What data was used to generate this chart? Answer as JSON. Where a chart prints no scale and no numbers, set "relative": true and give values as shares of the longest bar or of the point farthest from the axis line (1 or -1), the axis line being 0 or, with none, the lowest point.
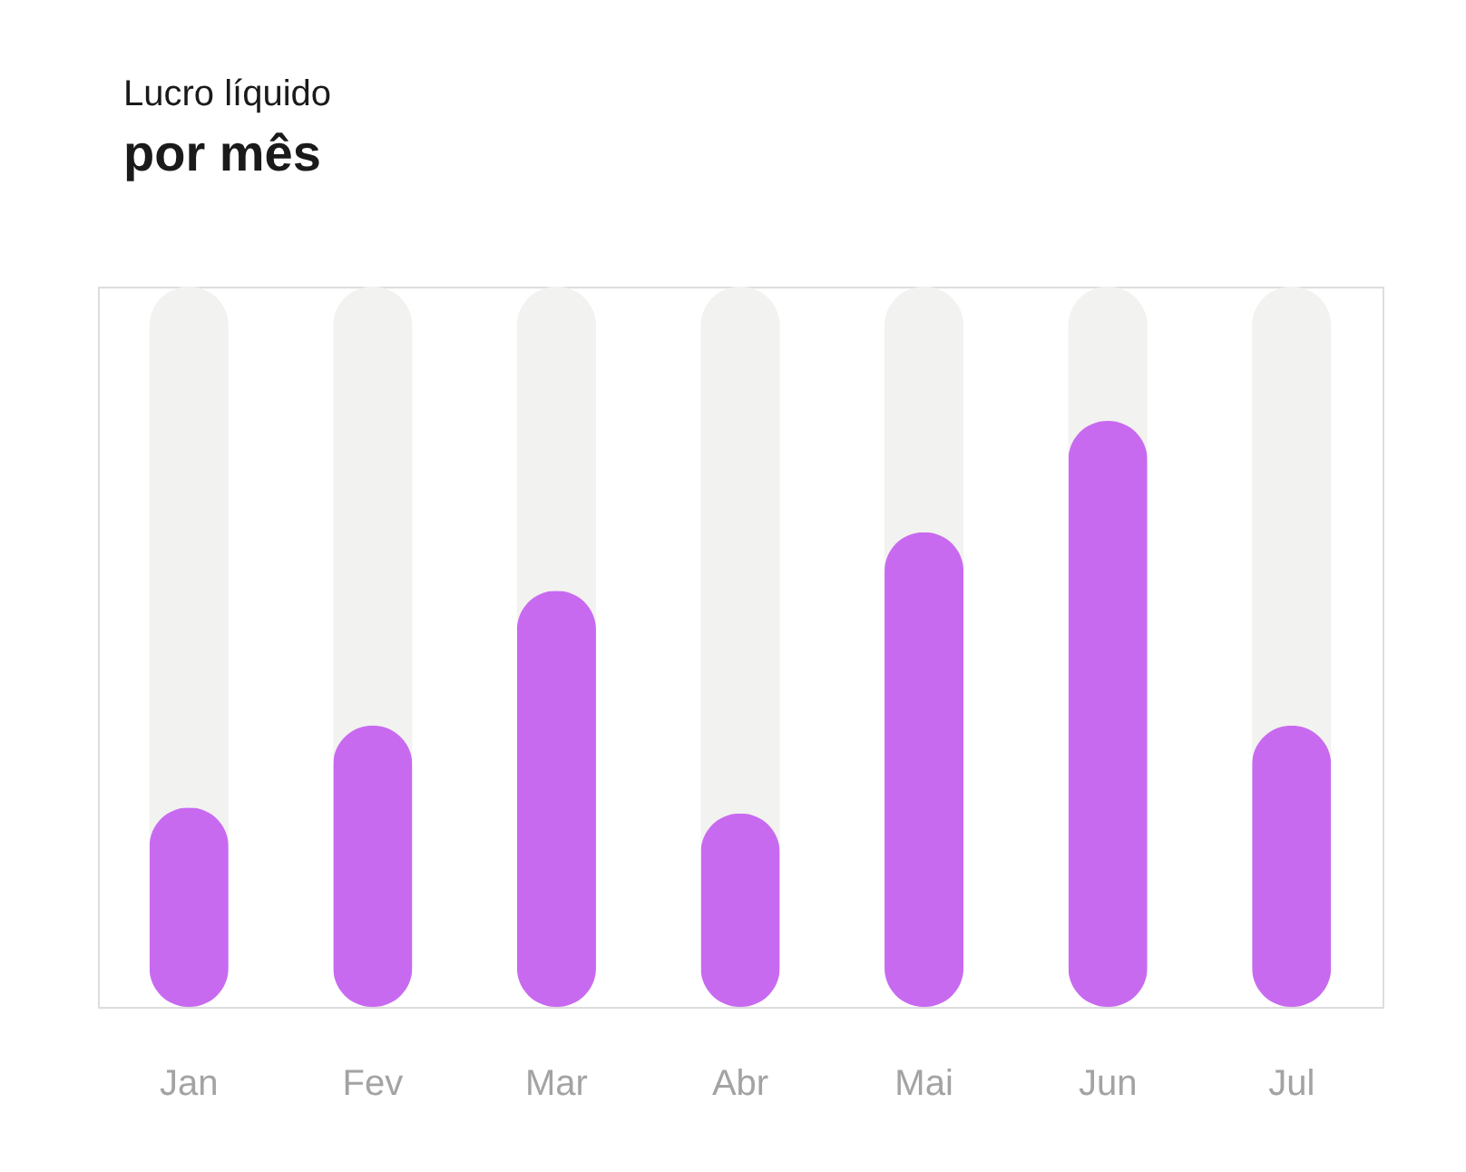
{
  "chart_data": {
    "type": "bar",
    "title": "Lucro líquido",
    "subtitle": "por mês",
    "relative": true,
    "categories": [
      "Jan",
      "Fev",
      "Mar",
      "Abr",
      "Mai",
      "Jun",
      "Jul"
    ],
    "values": [
      0.34,
      0.48,
      0.71,
      0.33,
      0.81,
      1,
      0.48
    ],
    "color": "#c86af0"
  }
}
